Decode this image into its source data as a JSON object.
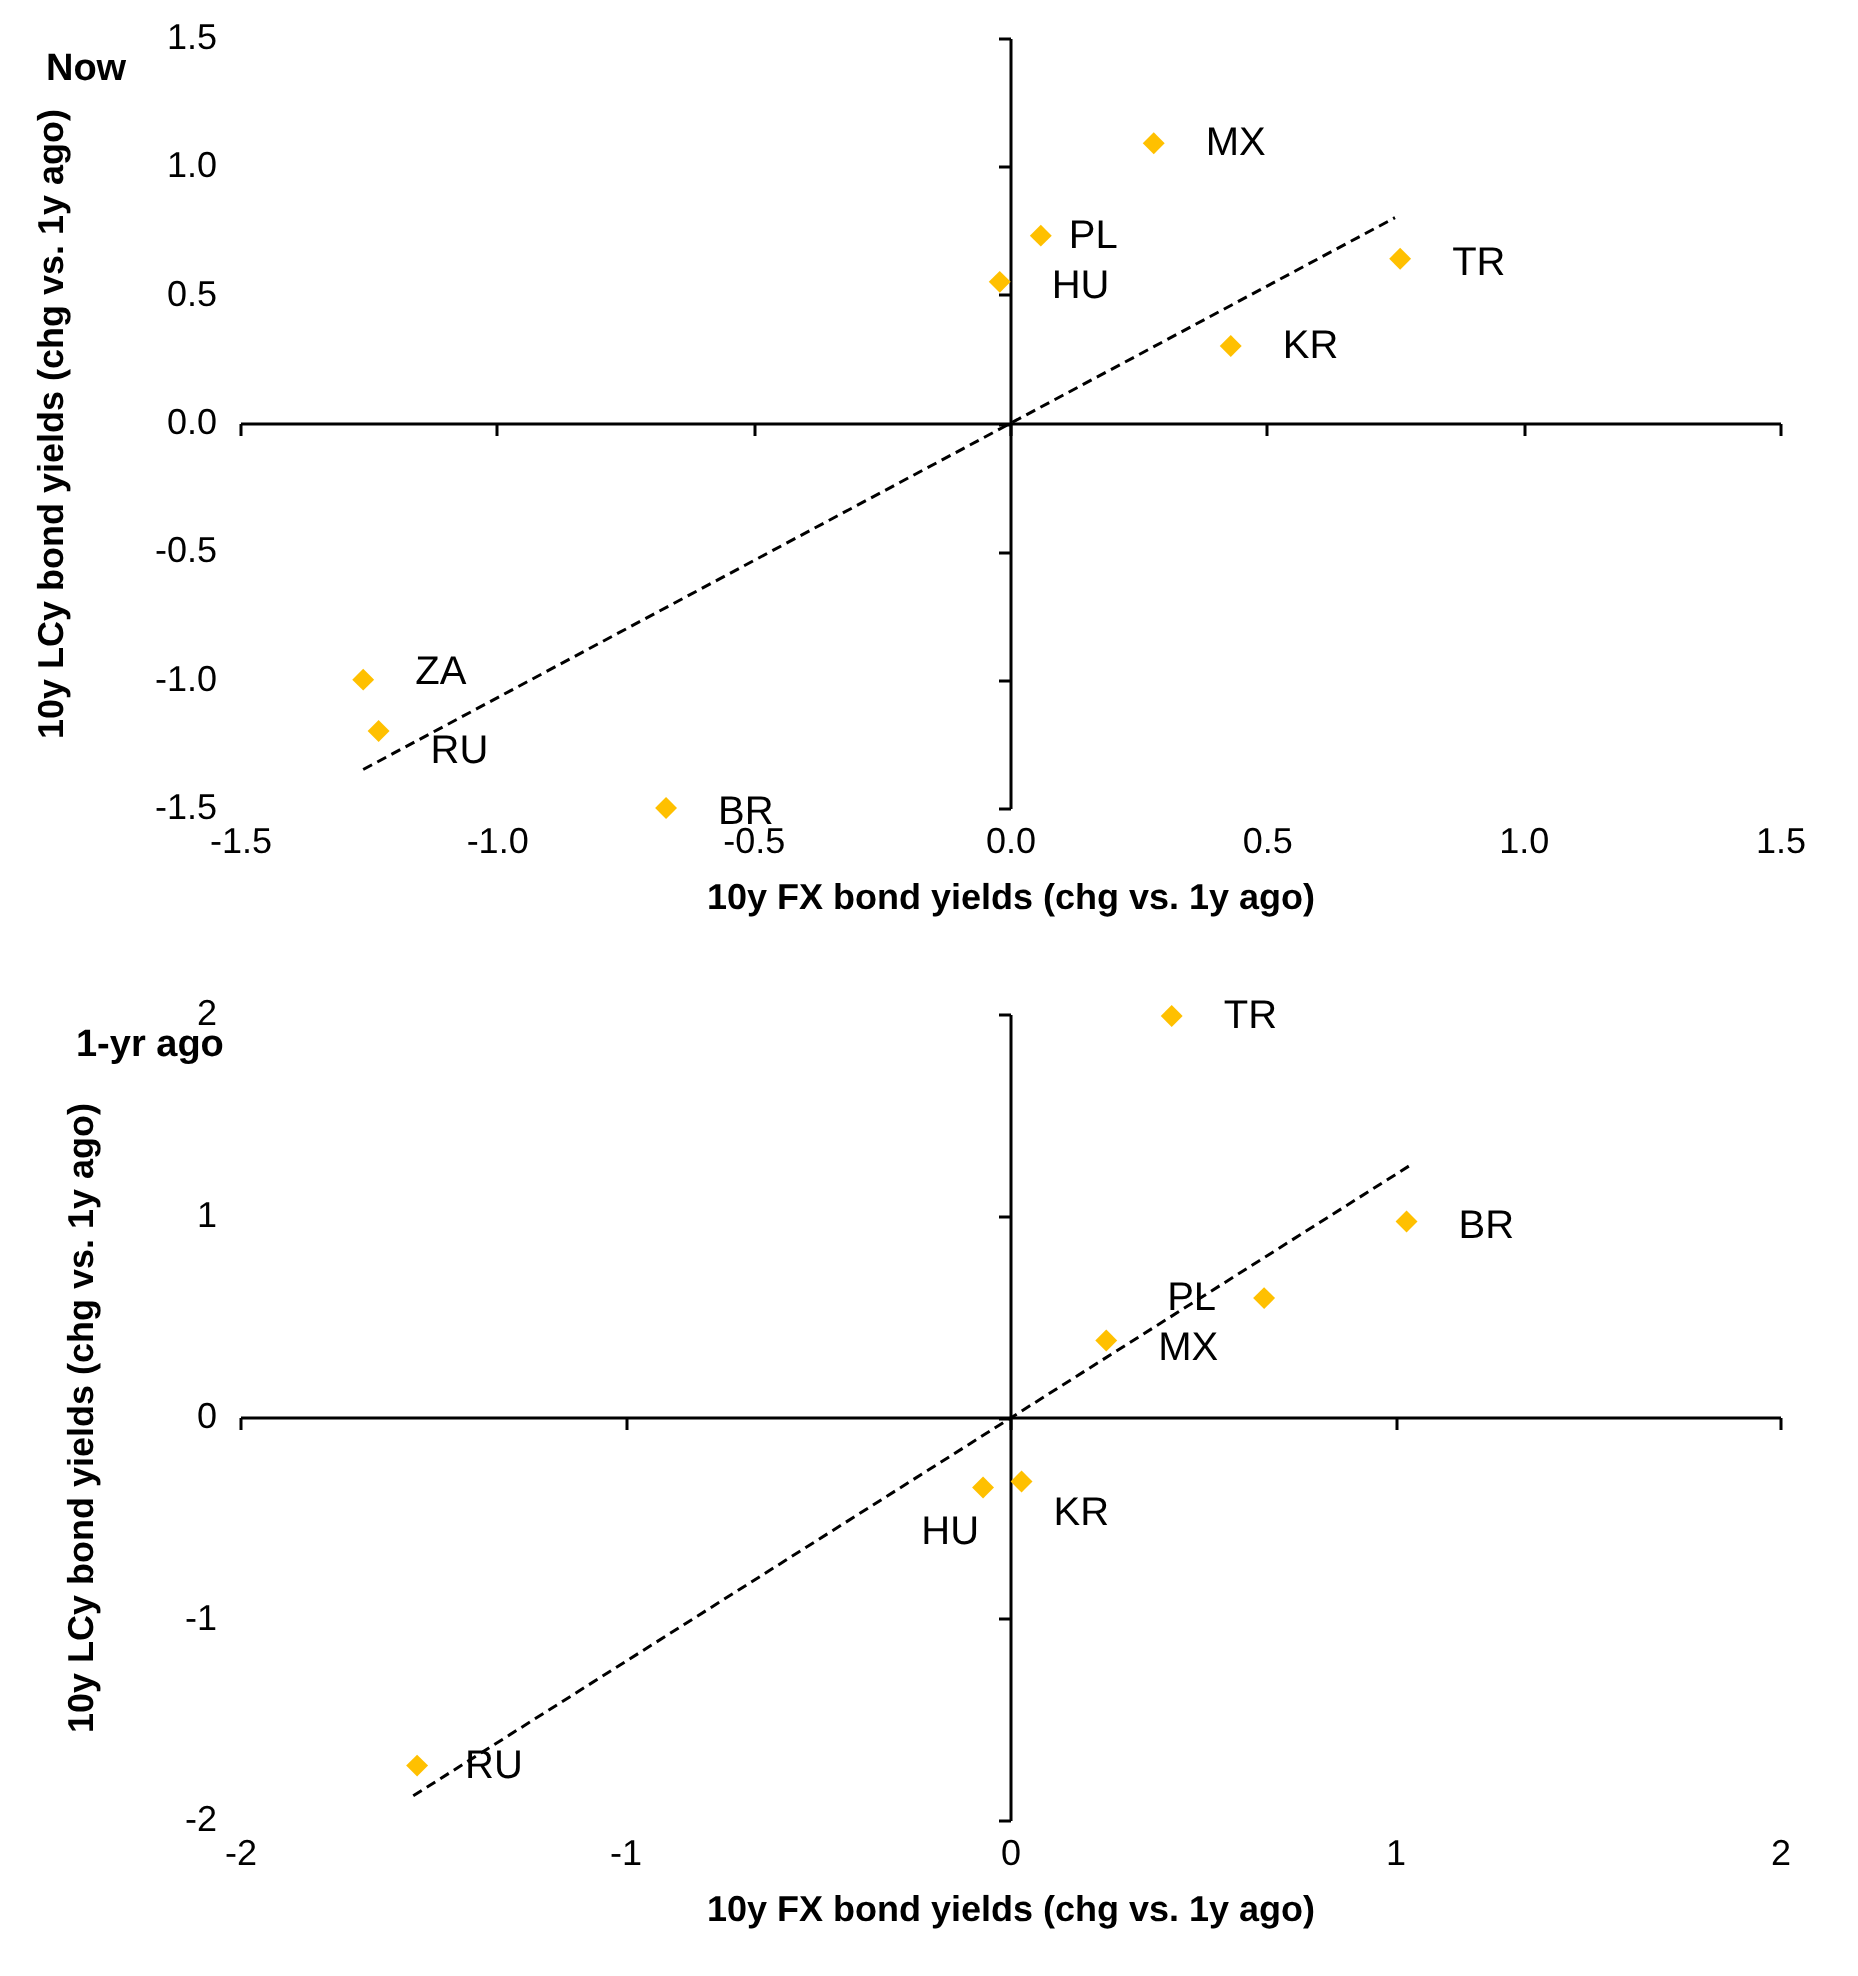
{
  "chart_data": [
    {
      "type": "scatter",
      "title": "Now",
      "xlabel": "10y FX bond yields (chg vs. 1y ago)",
      "ylabel": "10y LCy bond yields (chg vs. 1y ago)",
      "marker": "diamond",
      "xlim": [
        -1.5,
        1.5
      ],
      "ylim": [
        -1.5,
        1.5
      ],
      "xticks": [
        -1.5,
        {
          "value": -1,
          "label": "-1.0"
        },
        -0.5,
        {
          "value": 0,
          "label": "0.0"
        },
        0.5,
        {
          "value": 1,
          "label": "1.0"
        },
        1.5
      ],
      "yticks": [
        -1.5,
        {
          "value": -1,
          "label": "-1.0"
        },
        -0.5,
        {
          "value": 0,
          "label": "0.0"
        },
        0.5,
        {
          "value": 1,
          "label": "1.0"
        },
        1.5
      ],
      "series": [
        {
          "color": "#ffc000",
          "x": [
            0.28,
            0.06,
            -0.02,
            0.76,
            0.43,
            -1.26,
            -1.23,
            -0.67
          ],
          "values": [
            1.09,
            0.73,
            0.55,
            0.64,
            0.3,
            -1.0,
            -1.2,
            -1.5
          ]
        },
        {
          "type": "line",
          "color": "#000000",
          "line_style": "dashed",
          "marker": "none",
          "x": [
            -1.26,
            0.75
          ],
          "values": [
            -1.35,
            0.8
          ]
        }
      ],
      "annotations": [
        {
          "text": "MX",
          "x": 0.28,
          "y": 1.09
        },
        {
          "text": "PL",
          "x": 0.06,
          "y": 0.73
        },
        {
          "text": "HU",
          "x": -0.02,
          "y": 0.55
        },
        {
          "text": "TR",
          "x": 0.76,
          "y": 0.64
        },
        {
          "text": "KR",
          "x": 0.43,
          "y": 0.3
        },
        {
          "text": "ZA",
          "x": -1.26,
          "y": -1.0
        },
        {
          "text": "RU",
          "x": -1.23,
          "y": -1.2
        },
        {
          "text": "BR",
          "x": -0.67,
          "y": -1.5
        }
      ]
    },
    {
      "type": "scatter",
      "title": "1-yr ago",
      "xlabel": "10y FX bond yields (chg vs. 1y ago)",
      "ylabel": "10y LCy bond yields (chg vs. 1y ago)",
      "marker": "diamond",
      "xlim": [
        -2,
        2
      ],
      "ylim": [
        -2,
        2
      ],
      "xticks": [
        -2,
        -1,
        0,
        1,
        2
      ],
      "yticks": [
        -2,
        -1,
        0,
        1,
        2
      ],
      "series": [
        {
          "color": "#ffc000",
          "x": [
            0.42,
            1.03,
            0.66,
            0.25,
            -0.07,
            0.03,
            -1.54
          ],
          "values": [
            1.99,
            0.97,
            0.59,
            0.38,
            -0.35,
            -0.32,
            -1.73
          ]
        },
        {
          "type": "line",
          "color": "#000000",
          "line_style": "dashed",
          "marker": "none",
          "x": [
            -1.55,
            1.04
          ],
          "values": [
            -1.88,
            1.25
          ]
        }
      ],
      "annotations": [
        {
          "text": "TR",
          "x": 0.42,
          "y": 1.99
        },
        {
          "text": "BR",
          "x": 1.03,
          "y": 0.97
        },
        {
          "text": "PL",
          "x": 0.66,
          "y": 0.59
        },
        {
          "text": "MX",
          "x": 0.25,
          "y": 0.38
        },
        {
          "text": "HU",
          "x": -0.07,
          "y": -0.35
        },
        {
          "text": "KR",
          "x": 0.03,
          "y": -0.32
        },
        {
          "text": "RU",
          "x": -1.54,
          "y": -1.73
        }
      ]
    }
  ]
}
